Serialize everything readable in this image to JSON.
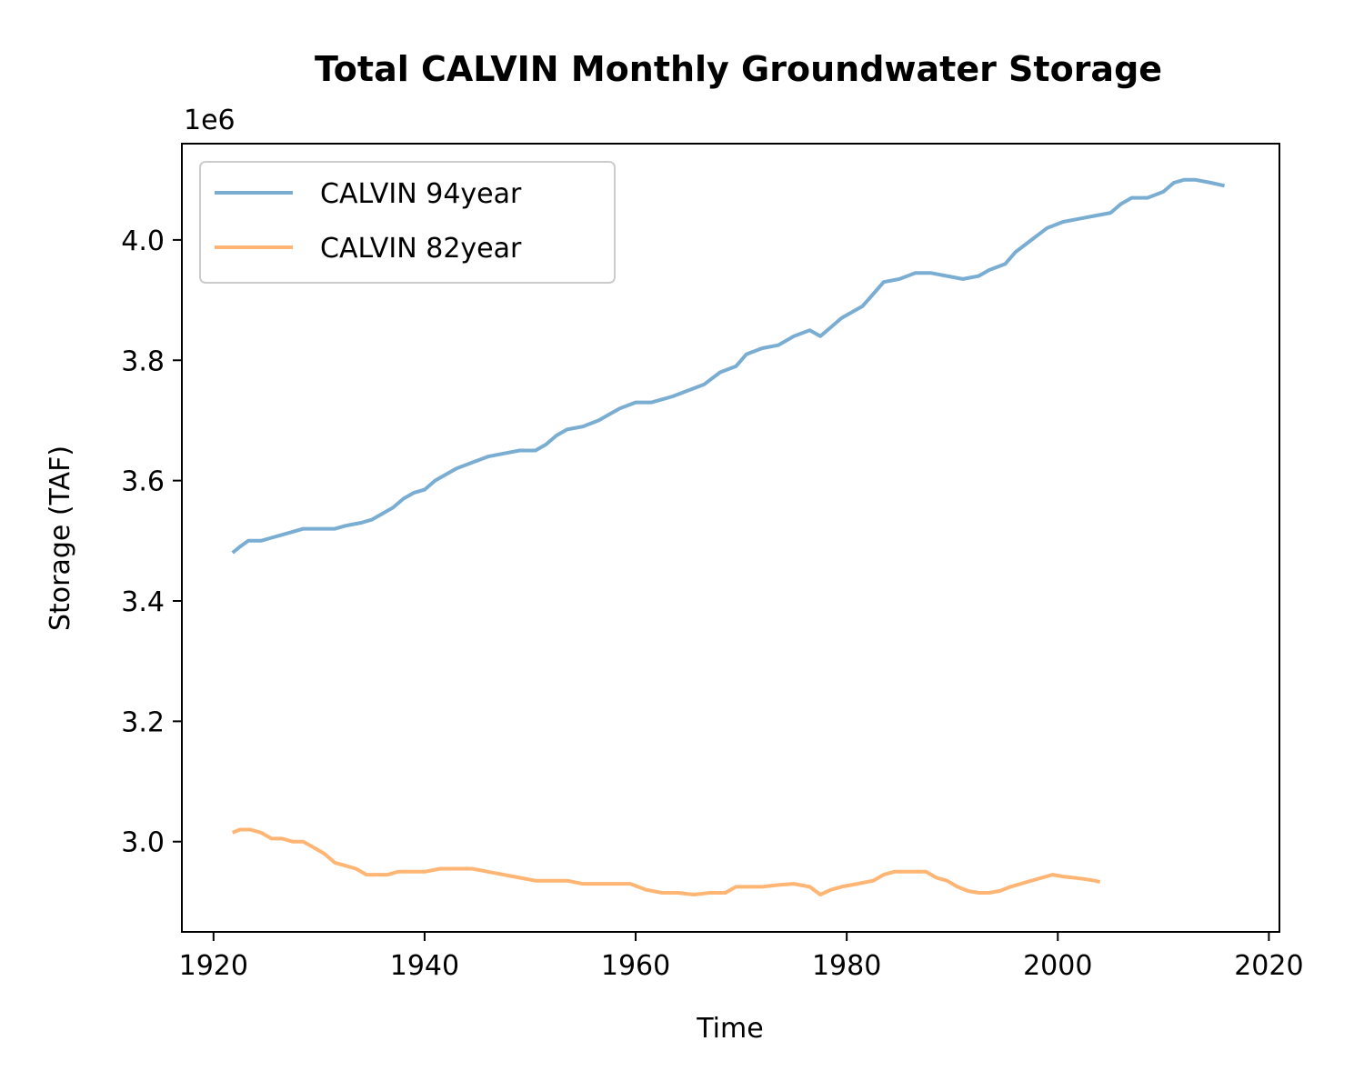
{
  "chart_data": {
    "type": "line",
    "title": "Total CALVIN Monthly Groundwater Storage",
    "xlabel": "Time",
    "ylabel": "Storage (TAF)",
    "y_offset_label": "1e6",
    "xlim": [
      1917,
      2021
    ],
    "ylim": [
      2.85,
      4.16
    ],
    "x_ticks": [
      1920,
      1940,
      1960,
      1980,
      2000,
      2020
    ],
    "x_tick_labels": [
      "1920",
      "1940",
      "1960",
      "1980",
      "2000",
      "2020"
    ],
    "y_ticks": [
      3.0,
      3.2,
      3.4,
      3.6,
      3.8,
      4.0
    ],
    "y_tick_labels": [
      "3.0",
      "3.2",
      "3.4",
      "3.6",
      "3.8",
      "4.0"
    ],
    "grid": false,
    "legend_position": "upper-left",
    "series": [
      {
        "name": "CALVIN 94year",
        "color": "#7aadd2",
        "points": [
          [
            1921.8,
            3.48
          ],
          [
            1922.5,
            3.49
          ],
          [
            1923.3,
            3.5
          ],
          [
            1924.5,
            3.5
          ],
          [
            1925.5,
            3.505
          ],
          [
            1926.5,
            3.51
          ],
          [
            1927.5,
            3.515
          ],
          [
            1928.5,
            3.52
          ],
          [
            1930.0,
            3.52
          ],
          [
            1931.5,
            3.52
          ],
          [
            1932.5,
            3.525
          ],
          [
            1934.0,
            3.53
          ],
          [
            1935.0,
            3.535
          ],
          [
            1936.0,
            3.545
          ],
          [
            1937.0,
            3.555
          ],
          [
            1938.0,
            3.57
          ],
          [
            1939.0,
            3.58
          ],
          [
            1940.0,
            3.585
          ],
          [
            1941.0,
            3.6
          ],
          [
            1942.0,
            3.61
          ],
          [
            1943.0,
            3.62
          ],
          [
            1944.5,
            3.63
          ],
          [
            1946.0,
            3.64
          ],
          [
            1947.5,
            3.645
          ],
          [
            1949.0,
            3.65
          ],
          [
            1950.5,
            3.65
          ],
          [
            1951.5,
            3.66
          ],
          [
            1952.5,
            3.675
          ],
          [
            1953.5,
            3.685
          ],
          [
            1955.0,
            3.69
          ],
          [
            1956.5,
            3.7
          ],
          [
            1957.5,
            3.71
          ],
          [
            1958.5,
            3.72
          ],
          [
            1960.0,
            3.73
          ],
          [
            1961.5,
            3.73
          ],
          [
            1962.5,
            3.735
          ],
          [
            1963.5,
            3.74
          ],
          [
            1965.0,
            3.75
          ],
          [
            1966.5,
            3.76
          ],
          [
            1968.0,
            3.78
          ],
          [
            1969.5,
            3.79
          ],
          [
            1970.5,
            3.81
          ],
          [
            1972.0,
            3.82
          ],
          [
            1973.5,
            3.825
          ],
          [
            1975.0,
            3.84
          ],
          [
            1976.5,
            3.85
          ],
          [
            1977.5,
            3.84
          ],
          [
            1978.5,
            3.855
          ],
          [
            1979.5,
            3.87
          ],
          [
            1980.5,
            3.88
          ],
          [
            1981.5,
            3.89
          ],
          [
            1982.5,
            3.91
          ],
          [
            1983.5,
            3.93
          ],
          [
            1985.0,
            3.935
          ],
          [
            1986.5,
            3.945
          ],
          [
            1988.0,
            3.945
          ],
          [
            1989.5,
            3.94
          ],
          [
            1991.0,
            3.935
          ],
          [
            1992.5,
            3.94
          ],
          [
            1993.5,
            3.95
          ],
          [
            1995.0,
            3.96
          ],
          [
            1996.0,
            3.98
          ],
          [
            1997.5,
            4.0
          ],
          [
            1999.0,
            4.02
          ],
          [
            2000.5,
            4.03
          ],
          [
            2002.0,
            4.035
          ],
          [
            2003.5,
            4.04
          ],
          [
            2005.0,
            4.045
          ],
          [
            2006.0,
            4.06
          ],
          [
            2007.0,
            4.07
          ],
          [
            2008.5,
            4.07
          ],
          [
            2010.0,
            4.08
          ],
          [
            2011.0,
            4.095
          ],
          [
            2012.0,
            4.1
          ],
          [
            2013.0,
            4.1
          ],
          [
            2014.5,
            4.095
          ],
          [
            2015.8,
            4.09
          ]
        ]
      },
      {
        "name": "CALVIN 82year",
        "color": "#ffb574",
        "points": [
          [
            1921.8,
            3.015
          ],
          [
            1922.5,
            3.02
          ],
          [
            1923.5,
            3.02
          ],
          [
            1924.5,
            3.015
          ],
          [
            1925.5,
            3.005
          ],
          [
            1926.5,
            3.005
          ],
          [
            1927.5,
            3.0
          ],
          [
            1928.5,
            3.0
          ],
          [
            1929.5,
            2.99
          ],
          [
            1930.5,
            2.98
          ],
          [
            1931.5,
            2.965
          ],
          [
            1932.5,
            2.96
          ],
          [
            1933.5,
            2.955
          ],
          [
            1934.5,
            2.945
          ],
          [
            1935.5,
            2.945
          ],
          [
            1936.5,
            2.945
          ],
          [
            1937.5,
            2.95
          ],
          [
            1938.5,
            2.95
          ],
          [
            1940.0,
            2.95
          ],
          [
            1941.5,
            2.955
          ],
          [
            1943.0,
            2.955
          ],
          [
            1944.5,
            2.955
          ],
          [
            1946.0,
            2.95
          ],
          [
            1947.5,
            2.945
          ],
          [
            1949.0,
            2.94
          ],
          [
            1950.5,
            2.935
          ],
          [
            1952.0,
            2.935
          ],
          [
            1953.5,
            2.935
          ],
          [
            1955.0,
            2.93
          ],
          [
            1956.5,
            2.93
          ],
          [
            1958.0,
            2.93
          ],
          [
            1959.5,
            2.93
          ],
          [
            1961.0,
            2.92
          ],
          [
            1962.5,
            2.915
          ],
          [
            1964.0,
            2.915
          ],
          [
            1965.5,
            2.912
          ],
          [
            1967.0,
            2.915
          ],
          [
            1968.5,
            2.915
          ],
          [
            1969.5,
            2.925
          ],
          [
            1970.5,
            2.925
          ],
          [
            1972.0,
            2.925
          ],
          [
            1973.5,
            2.928
          ],
          [
            1975.0,
            2.93
          ],
          [
            1976.5,
            2.925
          ],
          [
            1977.5,
            2.912
          ],
          [
            1978.5,
            2.92
          ],
          [
            1979.5,
            2.925
          ],
          [
            1981.0,
            2.93
          ],
          [
            1982.5,
            2.935
          ],
          [
            1983.5,
            2.945
          ],
          [
            1984.5,
            2.95
          ],
          [
            1986.0,
            2.95
          ],
          [
            1987.5,
            2.95
          ],
          [
            1988.5,
            2.94
          ],
          [
            1989.5,
            2.935
          ],
          [
            1990.5,
            2.925
          ],
          [
            1991.5,
            2.918
          ],
          [
            1992.5,
            2.915
          ],
          [
            1993.5,
            2.915
          ],
          [
            1994.5,
            2.918
          ],
          [
            1995.5,
            2.925
          ],
          [
            1996.5,
            2.93
          ],
          [
            1997.5,
            2.935
          ],
          [
            1998.5,
            2.94
          ],
          [
            1999.5,
            2.945
          ],
          [
            2000.5,
            2.942
          ],
          [
            2001.5,
            2.94
          ],
          [
            2002.5,
            2.938
          ],
          [
            2003.5,
            2.935
          ],
          [
            2004.0,
            2.933
          ]
        ]
      }
    ]
  }
}
